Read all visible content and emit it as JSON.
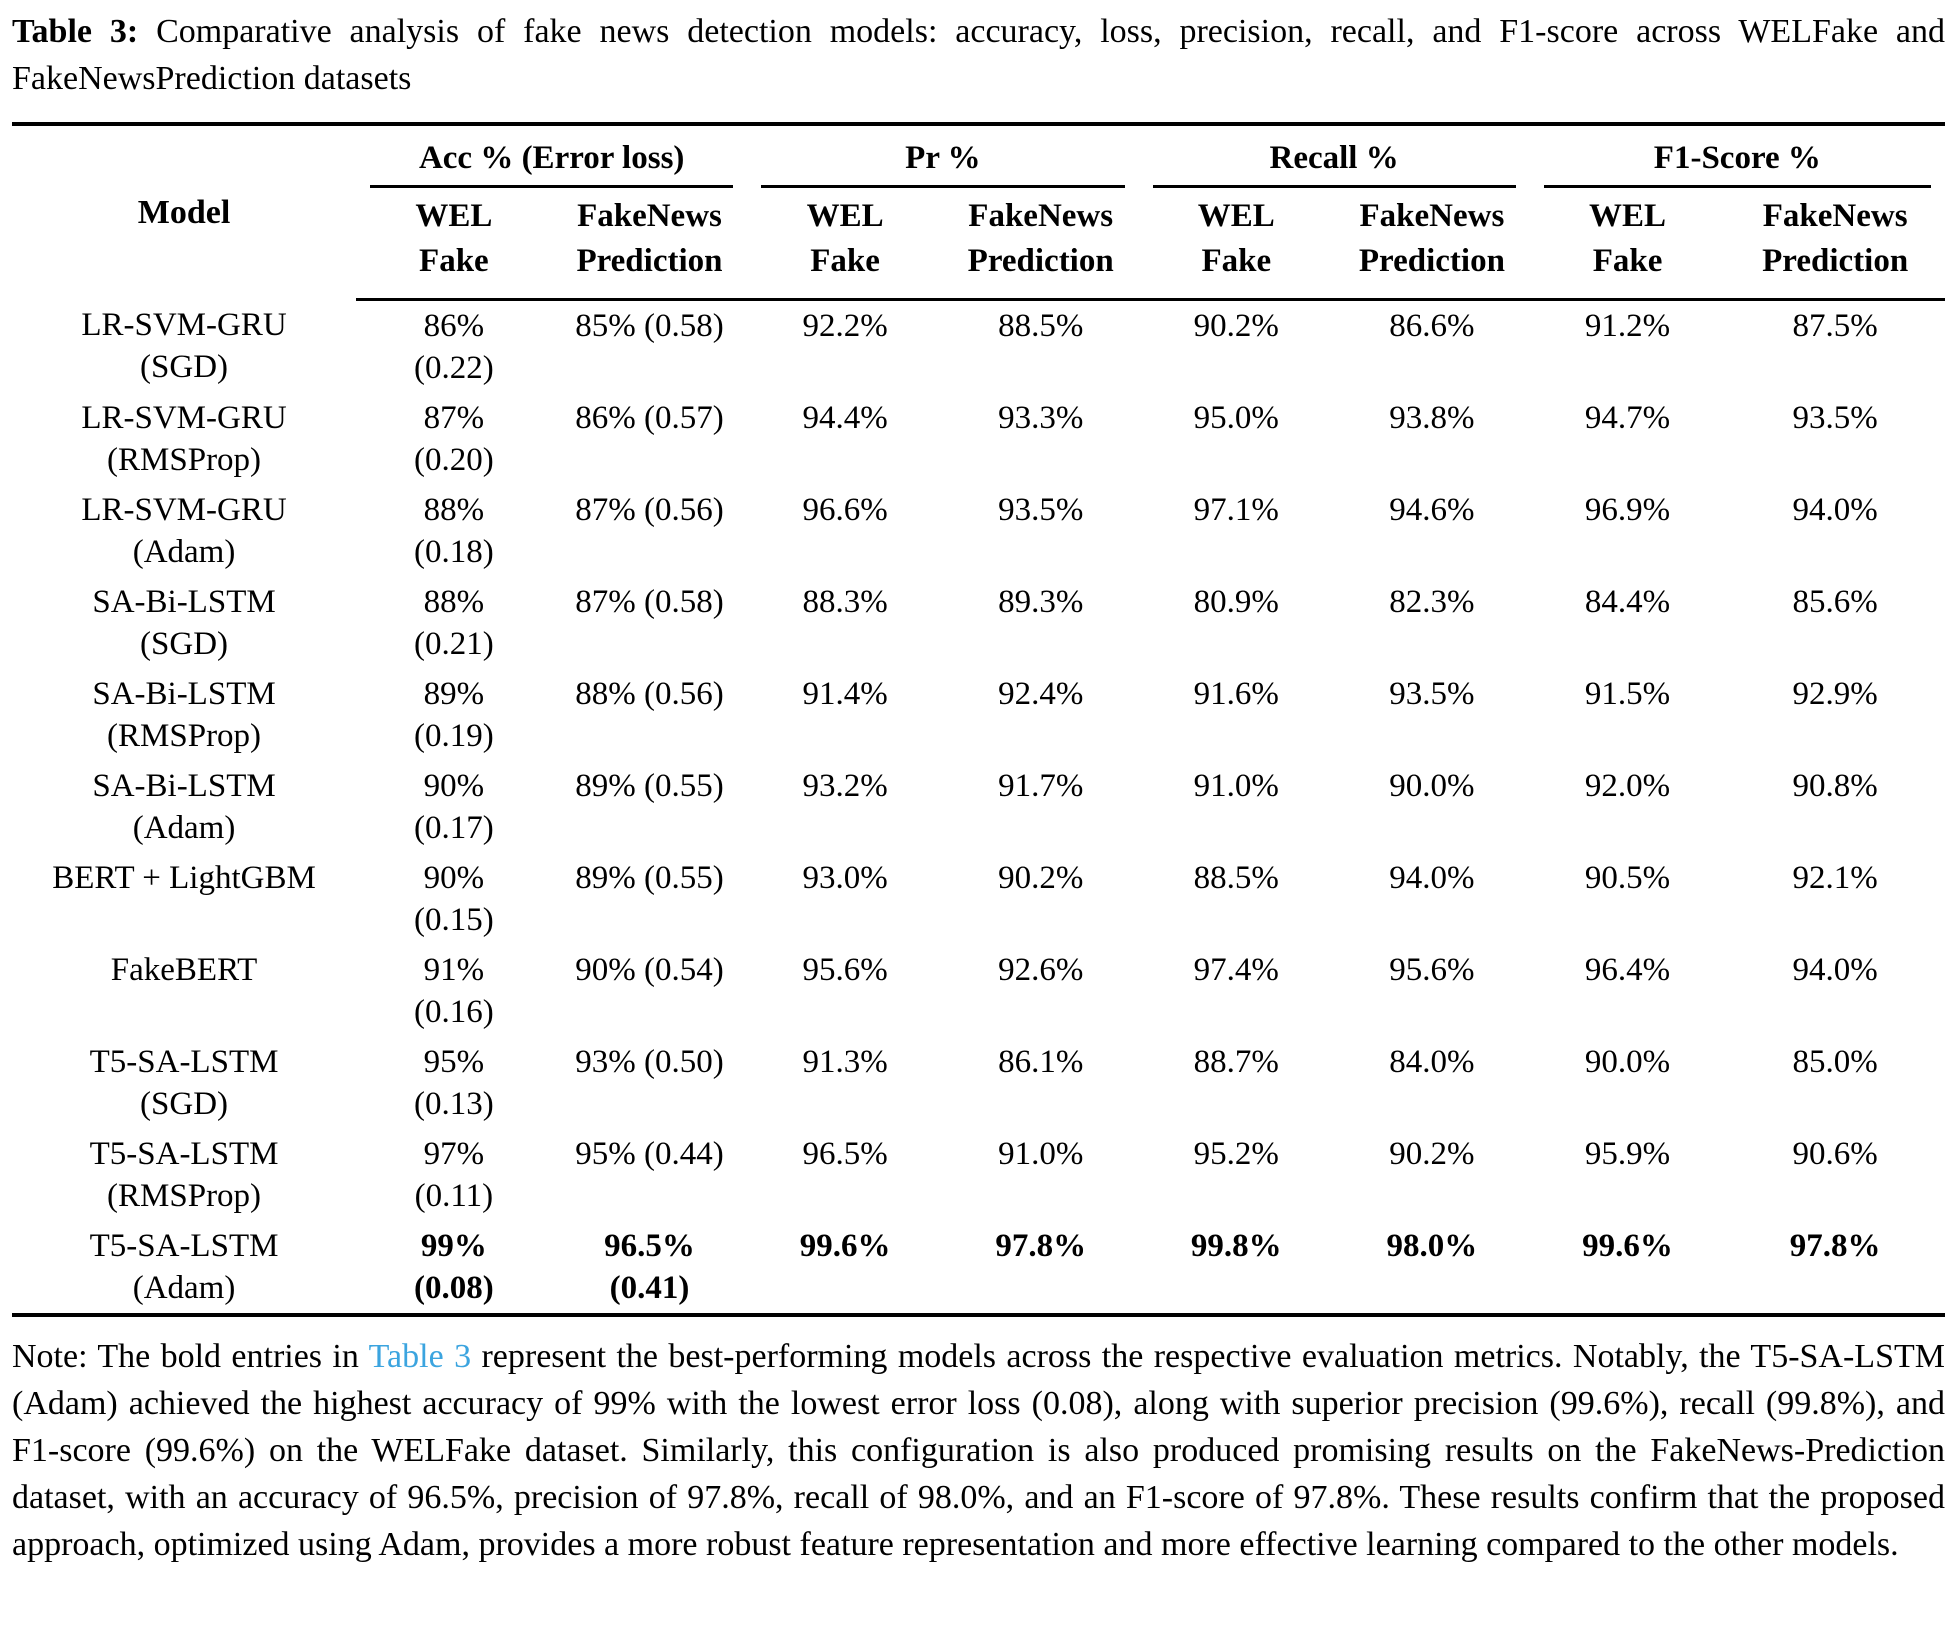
{
  "caption": {
    "label": "Table 3:",
    "text": " Comparative analysis of fake news detection models: accuracy, loss, precision, recall, and F1-score across WELFake and FakeNewsPrediction datasets"
  },
  "colors": {
    "link_blue": "#3ba4df",
    "text": "#000000",
    "background": "#ffffff"
  },
  "table": {
    "header": {
      "model": "Model",
      "groups": [
        {
          "label": "Acc % (Error loss)"
        },
        {
          "label": "Pr %"
        },
        {
          "label": "Recall %"
        },
        {
          "label": "F1-Score %"
        }
      ],
      "sub_wel": [
        "WEL",
        "Fake"
      ],
      "sub_fnp": [
        "FakeNews",
        "Prediction"
      ]
    },
    "rows": [
      {
        "model": [
          "LR-SVM-GRU",
          "(SGD)"
        ],
        "cells": [
          [
            "86%",
            "(0.22)"
          ],
          [
            "85% (0.58)",
            ""
          ],
          [
            "92.2%",
            ""
          ],
          [
            "88.5%",
            ""
          ],
          [
            "90.2%",
            ""
          ],
          [
            "86.6%",
            ""
          ],
          [
            "91.2%",
            ""
          ],
          [
            "87.5%",
            ""
          ]
        ],
        "bold": false
      },
      {
        "model": [
          "LR-SVM-GRU",
          "(RMSProp)"
        ],
        "cells": [
          [
            "87%",
            "(0.20)"
          ],
          [
            "86% (0.57)",
            ""
          ],
          [
            "94.4%",
            ""
          ],
          [
            "93.3%",
            ""
          ],
          [
            "95.0%",
            ""
          ],
          [
            "93.8%",
            ""
          ],
          [
            "94.7%",
            ""
          ],
          [
            "93.5%",
            ""
          ]
        ],
        "bold": false
      },
      {
        "model": [
          "LR-SVM-GRU",
          "(Adam)"
        ],
        "cells": [
          [
            "88%",
            "(0.18)"
          ],
          [
            "87% (0.56)",
            ""
          ],
          [
            "96.6%",
            ""
          ],
          [
            "93.5%",
            ""
          ],
          [
            "97.1%",
            ""
          ],
          [
            "94.6%",
            ""
          ],
          [
            "96.9%",
            ""
          ],
          [
            "94.0%",
            ""
          ]
        ],
        "bold": false
      },
      {
        "model": [
          "SA-Bi-LSTM",
          "(SGD)"
        ],
        "cells": [
          [
            "88%",
            "(0.21)"
          ],
          [
            "87% (0.58)",
            ""
          ],
          [
            "88.3%",
            ""
          ],
          [
            "89.3%",
            ""
          ],
          [
            "80.9%",
            ""
          ],
          [
            "82.3%",
            ""
          ],
          [
            "84.4%",
            ""
          ],
          [
            "85.6%",
            ""
          ]
        ],
        "bold": false
      },
      {
        "model": [
          "SA-Bi-LSTM",
          "(RMSProp)"
        ],
        "cells": [
          [
            "89%",
            "(0.19)"
          ],
          [
            "88% (0.56)",
            ""
          ],
          [
            "91.4%",
            ""
          ],
          [
            "92.4%",
            ""
          ],
          [
            "91.6%",
            ""
          ],
          [
            "93.5%",
            ""
          ],
          [
            "91.5%",
            ""
          ],
          [
            "92.9%",
            ""
          ]
        ],
        "bold": false
      },
      {
        "model": [
          "SA-Bi-LSTM",
          "(Adam)"
        ],
        "cells": [
          [
            "90%",
            "(0.17)"
          ],
          [
            "89% (0.55)",
            ""
          ],
          [
            "93.2%",
            ""
          ],
          [
            "91.7%",
            ""
          ],
          [
            "91.0%",
            ""
          ],
          [
            "90.0%",
            ""
          ],
          [
            "92.0%",
            ""
          ],
          [
            "90.8%",
            ""
          ]
        ],
        "bold": false
      },
      {
        "model": [
          "BERT + LightGBM",
          ""
        ],
        "cells": [
          [
            "90%",
            "(0.15)"
          ],
          [
            "89% (0.55)",
            ""
          ],
          [
            "93.0%",
            ""
          ],
          [
            "90.2%",
            ""
          ],
          [
            "88.5%",
            ""
          ],
          [
            "94.0%",
            ""
          ],
          [
            "90.5%",
            ""
          ],
          [
            "92.1%",
            ""
          ]
        ],
        "bold": false
      },
      {
        "model": [
          "FakeBERT",
          ""
        ],
        "cells": [
          [
            "91%",
            "(0.16)"
          ],
          [
            "90% (0.54)",
            ""
          ],
          [
            "95.6%",
            ""
          ],
          [
            "92.6%",
            ""
          ],
          [
            "97.4%",
            ""
          ],
          [
            "95.6%",
            ""
          ],
          [
            "96.4%",
            ""
          ],
          [
            "94.0%",
            ""
          ]
        ],
        "bold": false
      },
      {
        "model": [
          "T5-SA-LSTM",
          "(SGD)"
        ],
        "cells": [
          [
            "95%",
            "(0.13)"
          ],
          [
            "93% (0.50)",
            ""
          ],
          [
            "91.3%",
            ""
          ],
          [
            "86.1%",
            ""
          ],
          [
            "88.7%",
            ""
          ],
          [
            "84.0%",
            ""
          ],
          [
            "90.0%",
            ""
          ],
          [
            "85.0%",
            ""
          ]
        ],
        "bold": false
      },
      {
        "model": [
          "T5-SA-LSTM",
          "(RMSProp)"
        ],
        "cells": [
          [
            "97%",
            "(0.11)"
          ],
          [
            "95% (0.44)",
            ""
          ],
          [
            "96.5%",
            ""
          ],
          [
            "91.0%",
            ""
          ],
          [
            "95.2%",
            ""
          ],
          [
            "90.2%",
            ""
          ],
          [
            "95.9%",
            ""
          ],
          [
            "90.6%",
            ""
          ]
        ],
        "bold": false
      },
      {
        "model": [
          "T5-SA-LSTM",
          "(Adam)"
        ],
        "cells": [
          [
            "99%",
            "(0.08)"
          ],
          [
            "96.5%",
            "(0.41)"
          ],
          [
            "99.6%",
            ""
          ],
          [
            "97.8%",
            ""
          ],
          [
            "99.8%",
            ""
          ],
          [
            "98.0%",
            ""
          ],
          [
            "99.6%",
            ""
          ],
          [
            "97.8%",
            ""
          ]
        ],
        "bold": true
      }
    ]
  },
  "note": {
    "prefix": "Note: The bold entries in ",
    "link": "Table 3",
    "suffix": " represent the best-performing models across the respective evaluation metrics. Notably, the T5-SA-LSTM (Adam) achieved the highest accuracy of 99% with the lowest error loss (0.08), along with superior precision (99.6%), recall (99.8%), and F1-score (99.6%) on the WELFake dataset. Similarly, this configuration is also produced promising results on the FakeNews-Prediction dataset, with an accuracy of 96.5%, precision of 97.8%, recall of 98.0%, and an F1-score of 97.8%. These results confirm that the proposed approach, optimized using Adam, provides a more robust feature representation and more effective learning compared to the other models."
  }
}
